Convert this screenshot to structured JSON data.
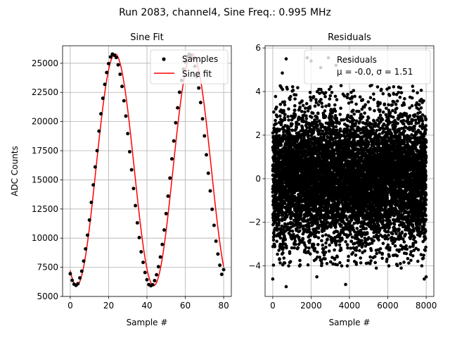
{
  "suptitle": "Run 2083, channel4, Sine Freq.: 0.995 MHz",
  "chart_data": [
    {
      "type": "line",
      "title": "Sine Fit",
      "xlabel": "Sample #",
      "ylabel": "ADC Counts",
      "xlim": [
        -4,
        84
      ],
      "ylim": [
        5000,
        26500
      ],
      "grid": true,
      "xticks": [
        0,
        20,
        40,
        60,
        80
      ],
      "yticks": [
        5000,
        7500,
        10000,
        12500,
        15000,
        17500,
        20000,
        22500,
        25000
      ],
      "xtick_labels": [
        "0",
        "20",
        "40",
        "60",
        "80"
      ],
      "ytick_labels": [
        "5000",
        "7500",
        "10000",
        "12500",
        "15000",
        "17500",
        "20000",
        "22500",
        "25000"
      ],
      "legend_position": "top-right",
      "legend": [
        "Samples",
        "Sine fit"
      ],
      "series": [
        {
          "name": "Samples",
          "style": "scatter",
          "color": "#000000",
          "x": [
            0,
            1,
            2,
            3,
            4,
            5,
            6,
            7,
            8,
            9,
            10,
            11,
            12,
            13,
            14,
            15,
            16,
            17,
            18,
            19,
            20,
            21,
            22,
            23,
            24,
            25,
            26,
            27,
            28,
            29,
            30,
            31,
            32,
            33,
            34,
            35,
            36,
            37,
            38,
            39,
            40,
            41,
            42,
            43,
            44,
            45,
            46,
            47,
            48,
            49,
            50,
            51,
            52,
            53,
            54,
            55,
            56,
            57,
            58,
            59,
            60,
            61,
            62,
            63,
            64,
            65,
            66,
            67,
            68,
            69,
            70,
            71,
            72,
            73,
            74,
            75,
            76,
            77,
            78,
            79,
            80
          ],
          "values": [
            6947,
            6384,
            6049,
            5949,
            6093,
            6591,
            7169,
            8037,
            9078,
            10252,
            11554,
            13067,
            14564,
            16104,
            17502,
            19179,
            20666,
            21998,
            23188,
            24204,
            24965,
            25540,
            25782,
            25694,
            25495,
            24865,
            24052,
            23013,
            21781,
            20469,
            18967,
            17413,
            15866,
            14258,
            12787,
            11309,
            10054,
            8831,
            7921,
            7051,
            6432,
            6020,
            5920,
            6004,
            6356,
            6859,
            7550,
            8384,
            9459,
            10698,
            12101,
            13602,
            15156,
            16798,
            18336,
            19896,
            21178,
            22515,
            23533,
            24490,
            25118,
            25575,
            25773,
            25680,
            25418,
            24743,
            23846,
            22880,
            21632,
            20232,
            18766,
            17150,
            15568,
            14052,
            12477,
            11098,
            9742,
            8641,
            7679,
            6898,
            7300
          ]
        },
        {
          "name": "Sine fit",
          "style": "line",
          "color": "#ff0000",
          "amplitude": 9935,
          "offset": 15865,
          "period": 40.2,
          "phase_sample": 2.6
        }
      ]
    },
    {
      "type": "scatter",
      "title": "Residuals",
      "xlabel": "Sample #",
      "ylabel": "",
      "xlim": [
        -400,
        8400
      ],
      "ylim": [
        -5.4,
        6.1
      ],
      "grid": true,
      "xticks": [
        0,
        2000,
        4000,
        6000,
        8000
      ],
      "yticks": [
        -4,
        -2,
        0,
        2,
        4,
        6
      ],
      "xtick_labels": [
        "0",
        "2000",
        "4000",
        "6000",
        "8000"
      ],
      "ytick_labels": [
        "−4",
        "−2",
        "0",
        "2",
        "4",
        "6"
      ],
      "legend_position": "top-right",
      "legend_label": "Residuals",
      "legend_stats": "μ = -0.0, σ = 1.51",
      "mean": -0.0,
      "std": 1.51,
      "n_points": 8000,
      "outliers": [
        [
          700,
          5.5
        ],
        [
          1800,
          5.55
        ],
        [
          2000,
          5.4
        ],
        [
          2500,
          5.1
        ],
        [
          2900,
          5.55
        ],
        [
          4000,
          5.5
        ],
        [
          500,
          4.85
        ],
        [
          3300,
          5.2
        ],
        [
          0,
          -4.6
        ],
        [
          700,
          -4.95
        ],
        [
          3800,
          -4.85
        ],
        [
          7900,
          -4.6
        ],
        [
          8000,
          -4.5
        ],
        [
          2300,
          -4.5
        ],
        [
          1400,
          -4.0
        ],
        [
          6700,
          -4.1
        ],
        [
          5400,
          -4.1
        ]
      ]
    }
  ]
}
